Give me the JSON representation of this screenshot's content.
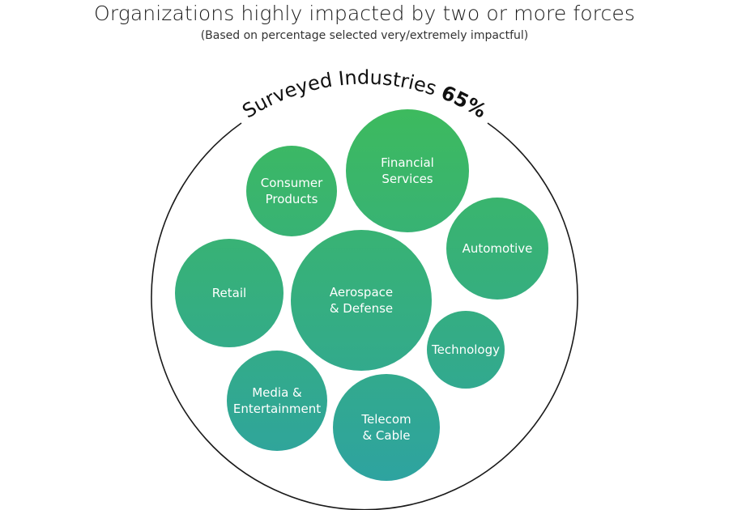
{
  "chart_data": {
    "type": "bubble",
    "title": "Organizations highly impacted by two or more forces",
    "subtitle": "(Based on percentage selected very/extremely impactful)",
    "container_label": "Surveyed Industries",
    "container_value": "65%",
    "categories": [
      "Consumer Products",
      "Financial Services",
      "Automotive",
      "Retail",
      "Aerospace & Defense",
      "Technology",
      "Media & Entertainment",
      "Telecom & Cable"
    ],
    "bubbles": [
      {
        "lines": [
          "Consumer",
          "Products"
        ]
      },
      {
        "lines": [
          "Financial",
          "Services"
        ]
      },
      {
        "lines": [
          "Automotive"
        ]
      },
      {
        "lines": [
          "Retail"
        ]
      },
      {
        "lines": [
          "Aerospace",
          "& Defense"
        ]
      },
      {
        "lines": [
          "Technology"
        ]
      },
      {
        "lines": [
          "Media &",
          "Entertainment"
        ]
      },
      {
        "lines": [
          "Telecom",
          "& Cable"
        ]
      }
    ],
    "colors": {
      "gradient_top": "#3dba5e",
      "gradient_bottom": "#2ea3a0",
      "outline": "#1a1a1a"
    }
  }
}
